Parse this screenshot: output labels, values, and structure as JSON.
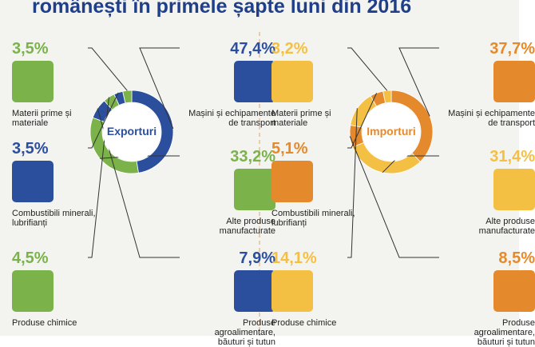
{
  "title": "românești în primele șapte luni din 2016",
  "chart_data": [
    {
      "type": "pie",
      "center_label": "Exporturi",
      "categories": [
        "Mașini și echipamente de transport",
        "Alte produse manufacturate",
        "Produse agroalimentare, băuturi și tutun",
        "Produse chimice",
        "Combustibili minerali, lubrifianți",
        "Materii prime și materiale"
      ],
      "values": [
        47.4,
        33.2,
        7.9,
        4.5,
        3.5,
        3.5
      ],
      "value_labels": [
        "47,4%",
        "33,2%",
        "7,9%",
        "4,5%",
        "3,5%",
        "3,5%"
      ],
      "colors": [
        "#2b4f9c",
        "#7bb24a",
        "#2b4f9c",
        "#7bb24a",
        "#2b4f9c",
        "#7bb24a"
      ]
    },
    {
      "type": "pie",
      "center_label": "Importuri",
      "categories": [
        "Mașini și echipamente de transport",
        "Alte produse manufacturate",
        "Produse agroalimentare, băuturi și tutun",
        "Produse chimice",
        "Combustibili minerali, lubrifianți",
        "Materii prime și materiale"
      ],
      "values": [
        37.7,
        31.4,
        8.5,
        14.1,
        5.1,
        3.2
      ],
      "value_labels": [
        "37,7%",
        "31,4%",
        "8,5%",
        "14,1%",
        "5,1%",
        "3,2%"
      ],
      "colors": [
        "#e58a2c",
        "#f4c043",
        "#e58a2c",
        "#f4c043",
        "#e58a2c",
        "#f4c043"
      ]
    }
  ]
}
